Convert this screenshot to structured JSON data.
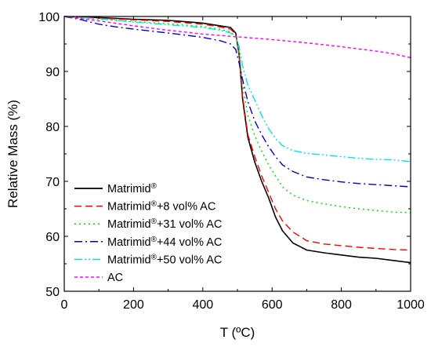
{
  "chart_data": {
    "type": "line",
    "xlabel": "T (ºC)",
    "ylabel": "Relative Mass (%)",
    "xlim": [
      0,
      1000
    ],
    "ylim": [
      50,
      100
    ],
    "x_ticks": [
      0,
      200,
      400,
      600,
      800,
      1000
    ],
    "y_ticks": [
      50,
      60,
      70,
      80,
      90,
      100
    ],
    "grid": false,
    "legend_position": "bottom-left",
    "series": [
      {
        "name": "Matrimid®",
        "color": "#000000",
        "dash": "solid",
        "x": [
          0,
          100,
          200,
          300,
          400,
          450,
          480,
          495,
          505,
          515,
          530,
          550,
          570,
          590,
          610,
          630,
          660,
          700,
          750,
          800,
          850,
          900,
          950,
          1000
        ],
        "y": [
          100,
          99.8,
          99.5,
          99.3,
          98.8,
          98.3,
          98.0,
          97.0,
          93.0,
          85.0,
          78.0,
          73.5,
          70.0,
          67.0,
          63.5,
          61.0,
          58.8,
          57.5,
          57.0,
          56.6,
          56.2,
          56.0,
          55.6,
          55.2
        ]
      },
      {
        "name": "Matrimid®+8 vol% AC",
        "color": "#ff0000",
        "dash": "dashed",
        "x": [
          0,
          100,
          200,
          300,
          400,
          450,
          480,
          495,
          505,
          515,
          530,
          550,
          570,
          590,
          610,
          630,
          660,
          700,
          750,
          800,
          850,
          900,
          950,
          1000
        ],
        "y": [
          100,
          99.7,
          99.4,
          99.1,
          98.6,
          98.1,
          97.7,
          96.8,
          93.0,
          85.5,
          78.5,
          74.5,
          71.0,
          68.0,
          65.0,
          62.8,
          60.8,
          59.2,
          58.6,
          58.3,
          58.0,
          57.8,
          57.6,
          57.5
        ]
      },
      {
        "name": "Matrimid®+31 vol% AC",
        "color": "#00e000",
        "dash": "dotted",
        "x": [
          0,
          100,
          200,
          300,
          400,
          450,
          480,
          495,
          505,
          515,
          530,
          550,
          570,
          590,
          610,
          630,
          660,
          700,
          750,
          800,
          850,
          900,
          950,
          1000
        ],
        "y": [
          100,
          99.5,
          99.1,
          98.7,
          98.2,
          97.7,
          97.2,
          96.4,
          93.5,
          87.5,
          82.0,
          78.3,
          75.5,
          73.0,
          71.0,
          69.0,
          67.5,
          66.5,
          65.9,
          65.4,
          65.0,
          64.7,
          64.4,
          64.3
        ]
      },
      {
        "name": "Matrimid®+44 vol% AC",
        "color": "#0000cc",
        "dash": "dashdot",
        "x": [
          0,
          50,
          100,
          150,
          200,
          300,
          400,
          450,
          480,
          495,
          505,
          515,
          530,
          550,
          570,
          590,
          610,
          630,
          660,
          700,
          750,
          800,
          850,
          900,
          950,
          1000
        ],
        "y": [
          100,
          99.4,
          98.6,
          98.1,
          97.7,
          97.0,
          96.2,
          95.6,
          95.0,
          94.0,
          91.5,
          88.5,
          84.5,
          81.0,
          78.5,
          76.3,
          74.5,
          73.0,
          71.8,
          70.8,
          70.3,
          69.9,
          69.6,
          69.4,
          69.2,
          69.0
        ]
      },
      {
        "name": "Matrimid®+50 vol% AC",
        "color": "#00e5e5",
        "dash": "dashdotdot",
        "x": [
          0,
          100,
          200,
          300,
          400,
          450,
          480,
          495,
          505,
          515,
          530,
          550,
          570,
          590,
          610,
          630,
          660,
          700,
          750,
          800,
          850,
          900,
          950,
          1000
        ],
        "y": [
          100,
          99.6,
          99.0,
          98.5,
          98.0,
          97.5,
          97.0,
          96.3,
          94.5,
          91.0,
          87.5,
          84.8,
          82.0,
          79.6,
          77.8,
          76.5,
          75.6,
          75.1,
          74.8,
          74.5,
          74.2,
          74.0,
          73.9,
          73.6
        ]
      },
      {
        "name": "AC",
        "color": "#ff00ff",
        "dash": "shortdash",
        "x": [
          0,
          100,
          200,
          300,
          400,
          500,
          600,
          700,
          800,
          900,
          950,
          1000
        ],
        "y": [
          100,
          99.2,
          98.3,
          97.5,
          96.8,
          96.3,
          95.8,
          95.2,
          94.5,
          93.7,
          93.2,
          92.5
        ]
      }
    ]
  }
}
